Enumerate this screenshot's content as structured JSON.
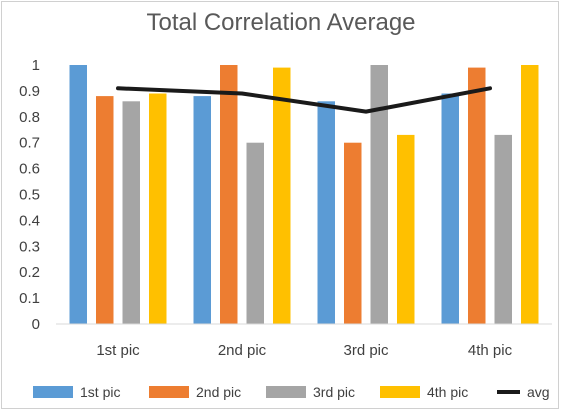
{
  "chart_data": {
    "type": "bar",
    "title": "Total Correlation Average",
    "categories": [
      "1st pic",
      "2nd pic",
      "3rd pic",
      "4th pic"
    ],
    "series": [
      {
        "name": "1st pic",
        "color": "#5B9BD5",
        "values": [
          1.0,
          0.88,
          0.86,
          0.89
        ]
      },
      {
        "name": "2nd pic",
        "color": "#ED7D31",
        "values": [
          0.88,
          1.0,
          0.7,
          0.99
        ]
      },
      {
        "name": "3rd pic",
        "color": "#A5A5A5",
        "values": [
          0.86,
          0.7,
          1.0,
          0.73
        ]
      },
      {
        "name": "4th pic",
        "color": "#FFC000",
        "values": [
          0.89,
          0.99,
          0.73,
          1.0
        ]
      }
    ],
    "line_series": {
      "name": "avg",
      "color": "#1a1a1a",
      "values": [
        0.91,
        0.89,
        0.82,
        0.91
      ]
    },
    "ylim": [
      0,
      1
    ],
    "yticks": [
      "0",
      "0.1",
      "0.2",
      "0.3",
      "0.4",
      "0.5",
      "0.6",
      "0.7",
      "0.8",
      "0.9",
      "1"
    ],
    "grid": false,
    "legend_position": "bottom"
  }
}
